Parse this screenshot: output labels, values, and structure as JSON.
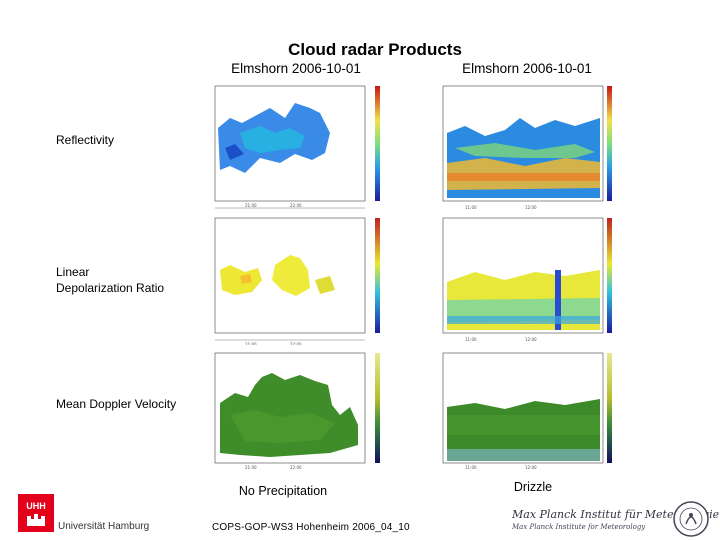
{
  "title": "Cloud radar Products",
  "columns": [
    {
      "label": "Elmshorn 2006-10-01"
    },
    {
      "label": "Elmshorn 2006-10-01"
    }
  ],
  "rows": [
    {
      "label": "Reflectivity"
    },
    {
      "label": "Linear Depolarization Ratio"
    },
    {
      "label": "Mean Doppler Velocity"
    }
  ],
  "captions": {
    "left": "No Precipitation",
    "right": "Drizzle"
  },
  "footer": "COPS-GOP-WS3 Hohenheim 2006_04_10",
  "logos": {
    "left_institution": "Universität Hamburg",
    "left_mark": "UHH",
    "right_institution": "Max Planck Institut für Meteorologie",
    "right_sub": "Max Planck Institute for Meteorology"
  },
  "colors": {
    "uhh_red": "#e2001a",
    "reflect_blue": "#1a6ee8",
    "ldr_yellow": "#f1ef3a",
    "doppler_green": "#3d8a2a"
  }
}
